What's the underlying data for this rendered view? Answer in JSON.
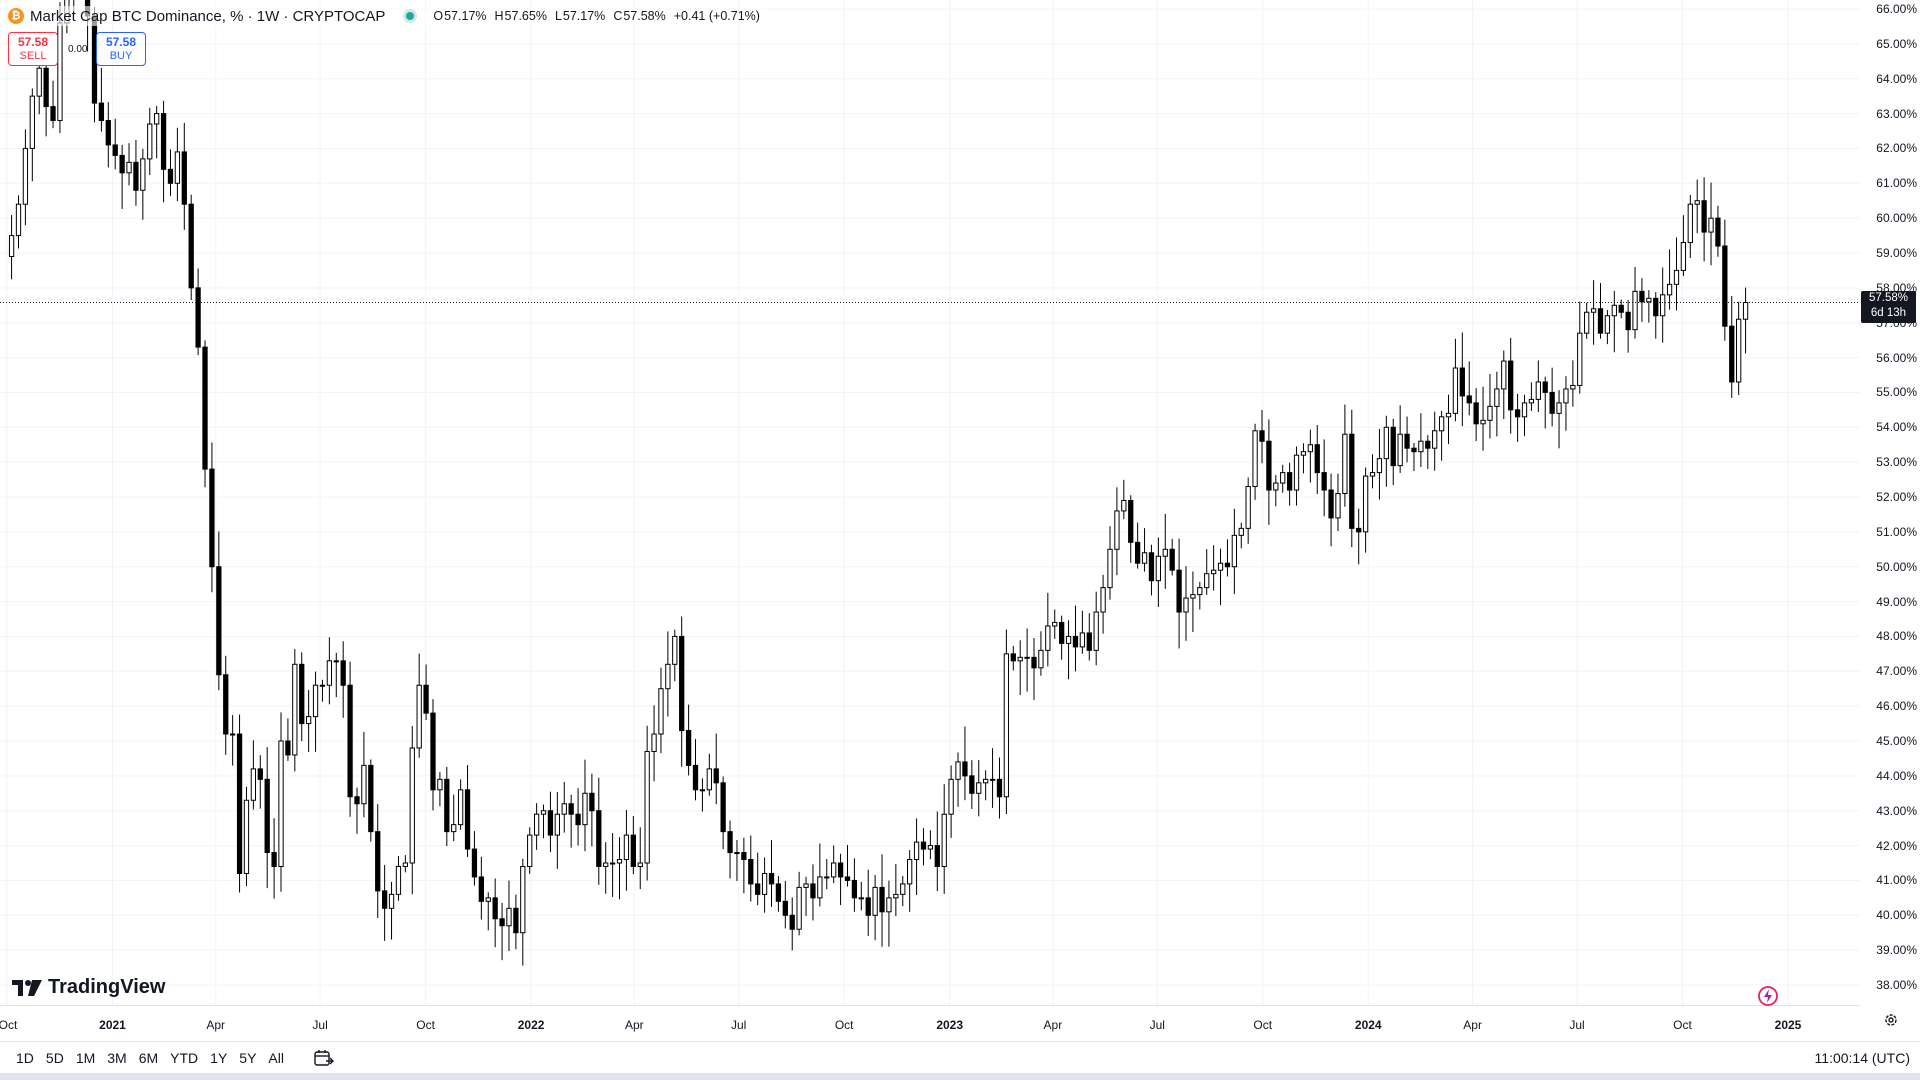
{
  "legend": {
    "coin_icon": "bitcoin-icon",
    "symbol_title": "Market Cap BTC Dominance, % · 1W · CRYPTOCAP",
    "open_label": "O",
    "open": "57.17%",
    "high_label": "H",
    "high": "57.65%",
    "low_label": "L",
    "low": "57.17%",
    "close_label": "C",
    "close": "57.58%",
    "change": "+0.41 (+0.71%)",
    "status_color": "#26a69a"
  },
  "trade": {
    "sell_price": "57.58",
    "sell_label": "SELL",
    "spread": "0.00",
    "buy_price": "57.58",
    "buy_label": "BUY"
  },
  "last_price": {
    "value": "57.58%",
    "countdown": "6d 13h"
  },
  "brand": "TradingView",
  "ranges": [
    "1D",
    "5D",
    "1M",
    "3M",
    "6M",
    "YTD",
    "1Y",
    "5Y",
    "All"
  ],
  "clock": "11:00:14 (UTC)",
  "colors": {
    "up_body": "#ffffff",
    "down_body": "#000000",
    "wick": "#000000",
    "last_line": "#131722",
    "accent": "#2962ff",
    "sell": "#f23645"
  },
  "chart_data": {
    "type": "candlestick",
    "interval": "1W",
    "x_start": "2020-10-01",
    "x_end": "2025-01-01",
    "ylim": [
      37.6,
      66.2
    ],
    "y_ticks": [
      "66.00%",
      "65.00%",
      "64.00%",
      "63.00%",
      "62.00%",
      "61.00%",
      "60.00%",
      "59.00%",
      "58.00%",
      "57.00%",
      "56.00%",
      "55.00%",
      "54.00%",
      "53.00%",
      "52.00%",
      "51.00%",
      "50.00%",
      "49.00%",
      "48.00%",
      "47.00%",
      "46.00%",
      "45.00%",
      "44.00%",
      "43.00%",
      "42.00%",
      "41.00%",
      "40.00%",
      "39.00%",
      "38.00%"
    ],
    "y_tick_values": [
      66,
      65,
      64,
      63,
      62,
      61,
      60,
      59,
      58,
      57,
      56,
      55,
      54,
      53,
      52,
      51,
      50,
      49,
      48,
      47,
      46,
      45,
      44,
      43,
      42,
      41,
      40,
      39,
      38
    ],
    "x_ticks": [
      {
        "label": "Oct",
        "date": "2020-10-01",
        "year": false
      },
      {
        "label": "2021",
        "date": "2021-01-01",
        "year": true
      },
      {
        "label": "Apr",
        "date": "2021-04-01",
        "year": false
      },
      {
        "label": "Jul",
        "date": "2021-07-01",
        "year": false
      },
      {
        "label": "Oct",
        "date": "2021-10-01",
        "year": false
      },
      {
        "label": "2022",
        "date": "2022-01-01",
        "year": true
      },
      {
        "label": "Apr",
        "date": "2022-04-01",
        "year": false
      },
      {
        "label": "Jul",
        "date": "2022-07-01",
        "year": false
      },
      {
        "label": "Oct",
        "date": "2022-10-01",
        "year": false
      },
      {
        "label": "2023",
        "date": "2023-01-01",
        "year": true
      },
      {
        "label": "Apr",
        "date": "2023-04-01",
        "year": false
      },
      {
        "label": "Jul",
        "date": "2023-07-01",
        "year": false
      },
      {
        "label": "Oct",
        "date": "2023-10-01",
        "year": false
      },
      {
        "label": "2024",
        "date": "2024-01-01",
        "year": true
      },
      {
        "label": "Apr",
        "date": "2024-04-01",
        "year": false
      },
      {
        "label": "Jul",
        "date": "2024-07-01",
        "year": false
      },
      {
        "label": "Oct",
        "date": "2024-10-01",
        "year": false
      },
      {
        "label": "2025",
        "date": "2025-01-01",
        "year": true
      }
    ],
    "last_close": 57.58,
    "grid": true,
    "closes": [
      59.5,
      60.4,
      62.0,
      63.5,
      64.3,
      63.2,
      62.8,
      65.6,
      66.4,
      66.6,
      66.6,
      65.8,
      63.3,
      62.8,
      62.1,
      61.8,
      61.3,
      61.6,
      60.8,
      61.7,
      62.7,
      63.0,
      61.4,
      61.0,
      61.9,
      60.4,
      58.0,
      56.3,
      52.8,
      50.0,
      46.9,
      45.2,
      45.2,
      41.2,
      43.3,
      44.2,
      43.9,
      41.8,
      41.4,
      45.0,
      44.6,
      47.2,
      45.5,
      45.7,
      46.6,
      46.6,
      47.3,
      47.3,
      46.6,
      43.4,
      43.2,
      44.3,
      42.4,
      40.7,
      40.2,
      40.6,
      41.4,
      41.5,
      44.8,
      46.6,
      45.8,
      43.6,
      43.9,
      42.4,
      42.6,
      43.6,
      41.9,
      41.1,
      40.4,
      40.5,
      39.9,
      39.7,
      40.2,
      39.5,
      41.4,
      42.3,
      42.9,
      43.0,
      42.3,
      42.9,
      43.2,
      42.9,
      42.6,
      43.5,
      43.0,
      41.4,
      41.5,
      41.5,
      41.6,
      42.3,
      41.4,
      41.5,
      44.7,
      45.2,
      46.5,
      47.2,
      48.0,
      45.3,
      44.3,
      43.6,
      43.6,
      44.2,
      43.8,
      42.4,
      41.8,
      41.8,
      41.6,
      40.9,
      40.6,
      41.2,
      40.9,
      40.4,
      40.0,
      39.6,
      40.8,
      40.9,
      40.5,
      41.1,
      41.1,
      41.5,
      41.1,
      41.0,
      40.5,
      40.5,
      40.0,
      40.8,
      40.1,
      40.5,
      40.6,
      40.9,
      41.6,
      42.1,
      41.9,
      42.0,
      41.4,
      42.9,
      43.9,
      44.4,
      44.0,
      43.5,
      43.8,
      43.9,
      43.9,
      43.4,
      47.5,
      47.3,
      47.4,
      47.4,
      47.1,
      47.6,
      48.3,
      48.4,
      47.8,
      48.0,
      47.7,
      48.1,
      47.6,
      48.7,
      49.4,
      50.5,
      51.6,
      51.9,
      50.7,
      50.1,
      50.4,
      49.6,
      50.3,
      50.5,
      49.9,
      48.7,
      49.1,
      49.2,
      49.4,
      49.8,
      49.9,
      50.1,
      50.0,
      50.9,
      51.1,
      52.3,
      53.9,
      53.6,
      52.2,
      52.4,
      52.7,
      52.2,
      53.2,
      53.3,
      53.5,
      52.7,
      52.2,
      51.4,
      52.1,
      53.8,
      51.1,
      51.0,
      52.6,
      52.7,
      53.1,
      54.0,
      52.9,
      53.8,
      53.4,
      53.3,
      53.6,
      53.4,
      53.9,
      54.3,
      54.4,
      55.7,
      54.9,
      54.7,
      54.1,
      54.2,
      54.6,
      55.1,
      55.9,
      54.5,
      54.3,
      54.7,
      54.8,
      55.3,
      55.0,
      54.4,
      54.7,
      55.1,
      55.2,
      56.7,
      57.3,
      57.4,
      56.7,
      57.2,
      57.5,
      57.3,
      56.8,
      57.9,
      57.6,
      57.7,
      57.2,
      57.8,
      58.1,
      58.5,
      59.3,
      60.4,
      60.5,
      59.6,
      60.0,
      59.2,
      56.9,
      55.3,
      57.1,
      57.58
    ]
  }
}
